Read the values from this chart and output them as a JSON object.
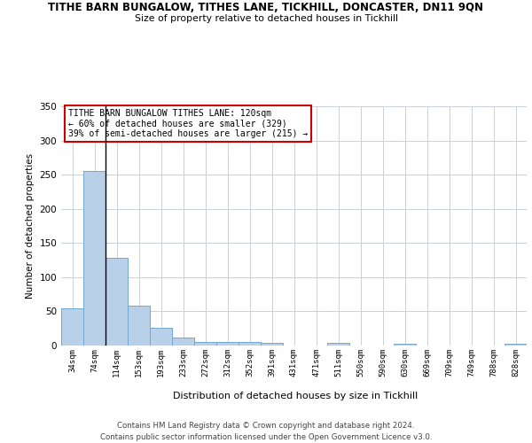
{
  "title_line1": "TITHE BARN BUNGALOW, TITHES LANE, TICKHILL, DONCASTER, DN11 9QN",
  "title_line2": "Size of property relative to detached houses in Tickhill",
  "xlabel": "Distribution of detached houses by size in Tickhill",
  "ylabel": "Number of detached properties",
  "categories": [
    "34sqm",
    "74sqm",
    "114sqm",
    "153sqm",
    "193sqm",
    "233sqm",
    "272sqm",
    "312sqm",
    "352sqm",
    "391sqm",
    "431sqm",
    "471sqm",
    "511sqm",
    "550sqm",
    "590sqm",
    "630sqm",
    "669sqm",
    "709sqm",
    "749sqm",
    "788sqm",
    "828sqm"
  ],
  "values": [
    55,
    255,
    128,
    58,
    26,
    12,
    5,
    5,
    5,
    4,
    0,
    0,
    4,
    0,
    0,
    3,
    0,
    0,
    0,
    0,
    3
  ],
  "bar_color": "#b8d0e8",
  "bar_edge_color": "#6fa8d0",
  "vline_color": "#000000",
  "annotation_text": "TITHE BARN BUNGALOW TITHES LANE: 120sqm\n← 60% of detached houses are smaller (329)\n39% of semi-detached houses are larger (215) →",
  "annotation_box_color": "#ffffff",
  "annotation_box_edge": "#cc0000",
  "ylim": [
    0,
    350
  ],
  "yticks": [
    0,
    50,
    100,
    150,
    200,
    250,
    300,
    350
  ],
  "background_color": "#ffffff",
  "grid_color": "#c8d0dc",
  "footer_line1": "Contains HM Land Registry data © Crown copyright and database right 2024.",
  "footer_line2": "Contains public sector information licensed under the Open Government Licence v3.0."
}
